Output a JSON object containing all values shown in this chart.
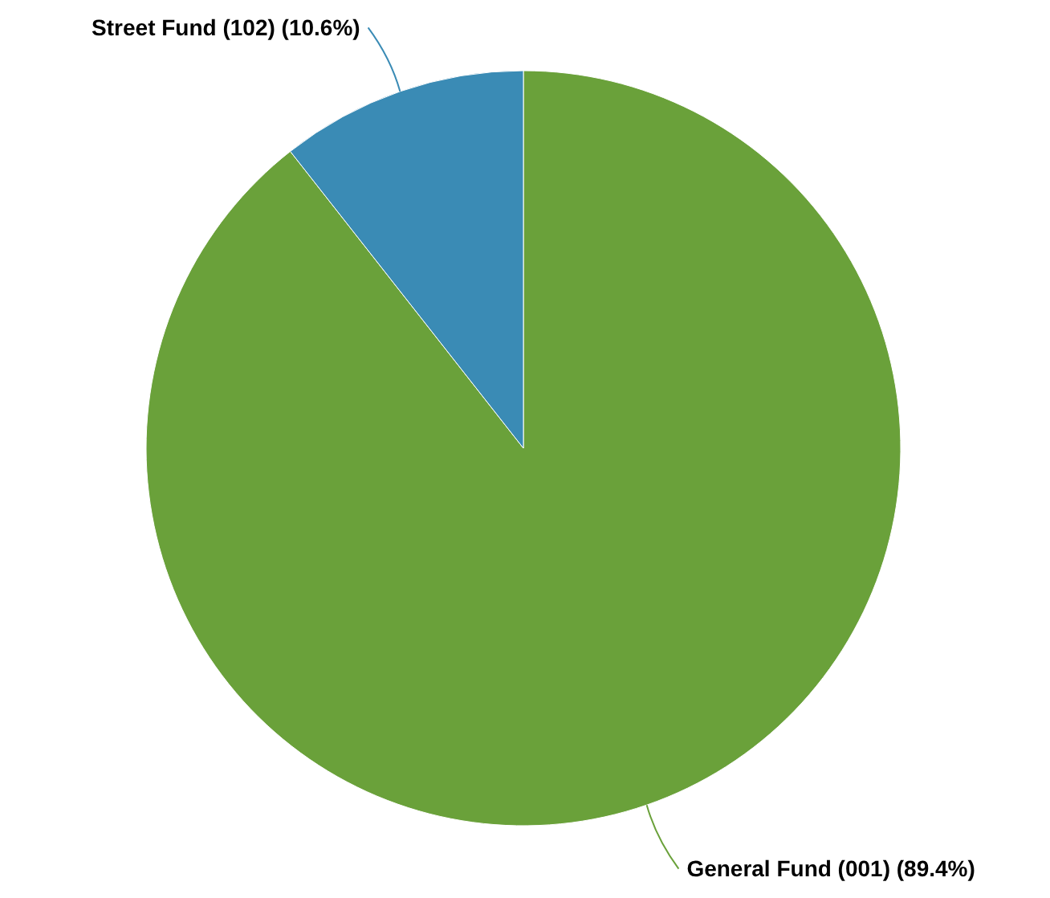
{
  "chart_data": {
    "type": "pie",
    "categories": [
      "General Fund (001)",
      "Street Fund (102)"
    ],
    "values": [
      89.4,
      10.6
    ],
    "colors": [
      "#6aa13a",
      "#3a8bb5"
    ],
    "value_labels": [
      "(89.4%)",
      "(10.6%)"
    ]
  }
}
